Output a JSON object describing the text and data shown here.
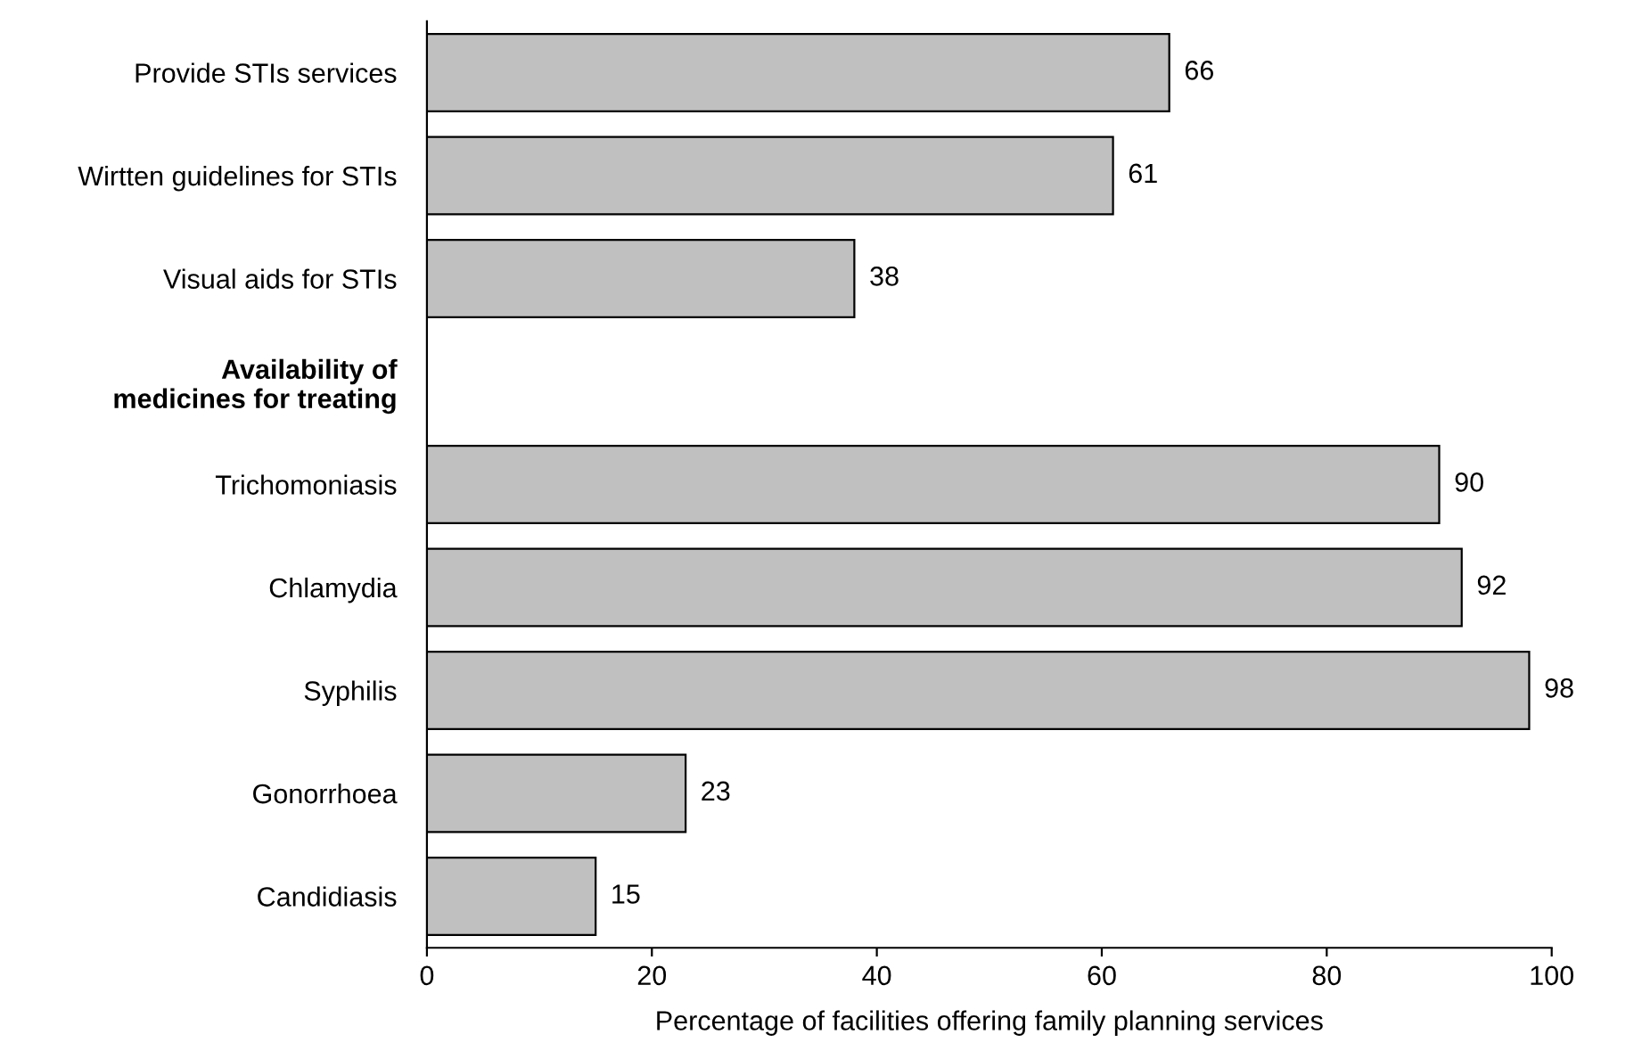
{
  "chart_data": {
    "type": "bar",
    "orientation": "horizontal",
    "categories": [
      "Provide STIs services",
      "Wirtten guidelines for STIs",
      "Visual aids for STIs",
      "Availability of\nmedicines for treating",
      "Trichomoniasis",
      "Chlamydia",
      "Syphilis",
      "Gonorrhoea",
      "Candidiasis"
    ],
    "values": [
      66,
      61,
      38,
      null,
      90,
      92,
      98,
      23,
      15
    ],
    "color": "#c0c0c0",
    "xlabel": "Percentage of facilities offering family planning services",
    "xlim": [
      0,
      100
    ],
    "xticks": [
      0,
      20,
      40,
      60,
      80,
      100
    ],
    "data_labels": true,
    "grid": false,
    "legend": false
  }
}
